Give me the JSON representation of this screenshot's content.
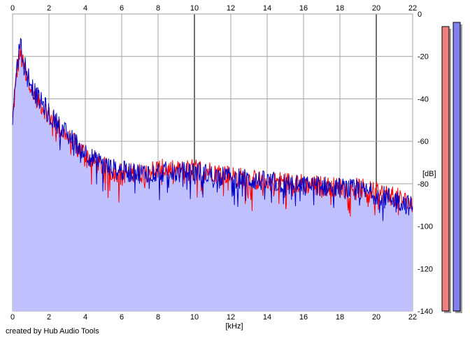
{
  "chart_data": {
    "type": "area",
    "xlabel": "[kHz]",
    "ylabel": "[dB]",
    "xlim": [
      0,
      22
    ],
    "ylim": [
      -140,
      0
    ],
    "x_ticks": [
      0,
      2,
      4,
      6,
      8,
      10,
      12,
      14,
      16,
      18,
      20,
      22
    ],
    "y_ticks": [
      0,
      -20,
      -40,
      -60,
      -80,
      -100,
      -120,
      -140
    ],
    "grid": true,
    "series": [
      {
        "color": "#ff0000",
        "points": [
          [
            0,
            -50
          ],
          [
            0.2,
            -30
          ],
          [
            0.4,
            -18
          ],
          [
            0.6,
            -25
          ],
          [
            0.8,
            -28
          ],
          [
            1,
            -33
          ],
          [
            1.2,
            -38
          ],
          [
            1.5,
            -42
          ],
          [
            1.8,
            -45
          ],
          [
            2,
            -48
          ],
          [
            2.5,
            -53
          ],
          [
            3,
            -58
          ],
          [
            3.5,
            -62
          ],
          [
            4,
            -66
          ],
          [
            4.5,
            -70
          ],
          [
            5,
            -72
          ],
          [
            5.5,
            -74
          ],
          [
            6,
            -75
          ],
          [
            7,
            -75
          ],
          [
            8,
            -73
          ],
          [
            9,
            -74
          ],
          [
            10,
            -73
          ],
          [
            11,
            -74
          ],
          [
            12,
            -76
          ],
          [
            13,
            -78
          ],
          [
            14,
            -79
          ],
          [
            15,
            -79
          ],
          [
            16,
            -80
          ],
          [
            17,
            -81
          ],
          [
            18,
            -82
          ],
          [
            19,
            -82
          ],
          [
            20,
            -84
          ],
          [
            21,
            -86
          ],
          [
            22,
            -90
          ]
        ]
      },
      {
        "color": "#0000c8",
        "points": [
          [
            0,
            -48
          ],
          [
            0.2,
            -28
          ],
          [
            0.4,
            -14
          ],
          [
            0.6,
            -22
          ],
          [
            0.8,
            -26
          ],
          [
            1,
            -32
          ],
          [
            1.2,
            -37
          ],
          [
            1.5,
            -41
          ],
          [
            1.8,
            -44
          ],
          [
            2,
            -47
          ],
          [
            2.5,
            -52
          ],
          [
            3,
            -57
          ],
          [
            3.5,
            -61
          ],
          [
            4,
            -65
          ],
          [
            4.5,
            -69
          ],
          [
            5,
            -71
          ],
          [
            5.5,
            -73
          ],
          [
            6,
            -74
          ],
          [
            7,
            -75
          ],
          [
            8,
            -74
          ],
          [
            9,
            -75
          ],
          [
            10,
            -74
          ],
          [
            11,
            -76
          ],
          [
            12,
            -77
          ],
          [
            13,
            -78
          ],
          [
            14,
            -79
          ],
          [
            15,
            -80
          ],
          [
            16,
            -81
          ],
          [
            17,
            -81
          ],
          [
            18,
            -82
          ],
          [
            19,
            -83
          ],
          [
            20,
            -85
          ],
          [
            21,
            -87
          ],
          [
            22,
            -91
          ]
        ]
      }
    ],
    "fill_color": "#c0c0ff",
    "level_meters": [
      {
        "color": "#f08080"
      },
      {
        "color": "#8080f0"
      }
    ]
  },
  "footer": {
    "credit": "created by Hub Audio Tools"
  }
}
